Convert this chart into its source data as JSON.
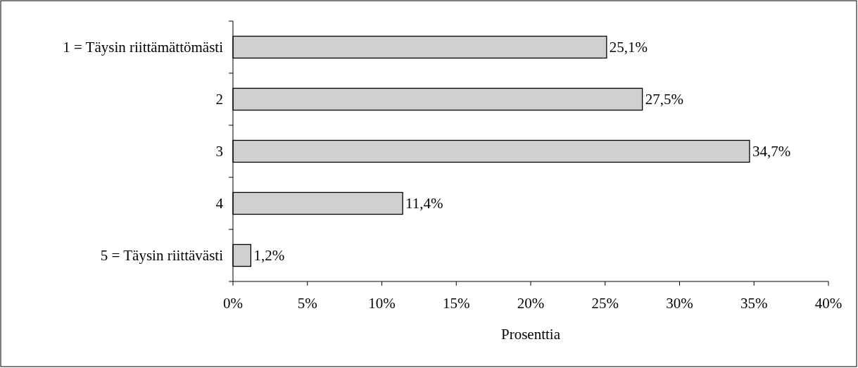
{
  "chart_data": {
    "type": "bar",
    "orientation": "horizontal",
    "xlabel": "Prosenttia",
    "categories": [
      "1 = Täysin riittämättömästi",
      "2",
      "3",
      "4",
      "5 = Täysin riittävästi"
    ],
    "values": [
      25.1,
      27.5,
      34.7,
      11.4,
      1.2
    ],
    "value_labels": [
      "25,1%",
      "27,5%",
      "34,7%",
      "11,4%",
      "1,2%"
    ],
    "color": "#d0d0d0",
    "xlim": [
      0,
      40
    ],
    "xticks": [
      {
        "value": 0,
        "label": "0%"
      },
      {
        "value": 5,
        "label": "5%"
      },
      {
        "value": 10,
        "label": "10%"
      },
      {
        "value": 15,
        "label": "15%"
      },
      {
        "value": 20,
        "label": "20%"
      },
      {
        "value": 25,
        "label": "25%"
      },
      {
        "value": 30,
        "label": "30%"
      },
      {
        "value": 35,
        "label": "35%"
      },
      {
        "value": 40,
        "label": "40%"
      }
    ],
    "grid": false
  }
}
